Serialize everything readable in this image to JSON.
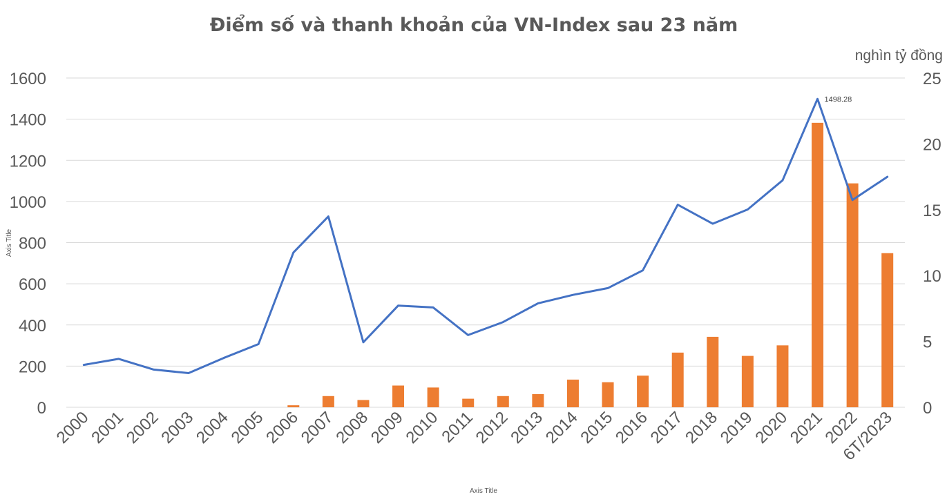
{
  "chart_data": {
    "type": "bar+line",
    "title": "Điểm số và thanh khoản của VN-Index sau 23 năm",
    "xlabel": "Axis Title",
    "ylabel": "Axis Title",
    "y2label": "nghìn tỷ đồng",
    "categories": [
      "2000",
      "2001",
      "2002",
      "2003",
      "2004",
      "2005",
      "2006",
      "2007",
      "2008",
      "2009",
      "2010",
      "2011",
      "2012",
      "2013",
      "2014",
      "2015",
      "2016",
      "2017",
      "2018",
      "2019",
      "2020",
      "2021",
      "2022",
      "6T/2023"
    ],
    "ylim": [
      0,
      1600
    ],
    "yticks": [
      "0",
      "200",
      "400",
      "600",
      "800",
      "1000",
      "1200",
      "1400",
      "1600"
    ],
    "y2lim": [
      0,
      25
    ],
    "y2ticks": [
      "0",
      "5",
      "10",
      "15",
      "20",
      "25"
    ],
    "grid": true,
    "series": [
      {
        "type": "bar",
        "axis": "right",
        "color": "#ed7d31",
        "values": [
          0,
          0,
          0,
          0,
          0,
          0,
          0.15,
          0.85,
          0.55,
          1.65,
          1.5,
          0.65,
          0.85,
          1.0,
          2.1,
          1.9,
          2.4,
          4.15,
          5.35,
          3.9,
          4.7,
          21.6,
          17.0,
          11.7
        ]
      },
      {
        "type": "line",
        "axis": "left",
        "color": "#4472c4",
        "values": [
          206,
          235,
          183,
          166,
          239,
          307,
          752,
          927,
          316,
          494,
          485,
          351,
          414,
          505,
          546,
          579,
          665,
          984,
          892,
          961,
          1103,
          1498.28,
          1007,
          1120
        ]
      }
    ],
    "annotations": [
      {
        "category": "2021",
        "text": "1498.28"
      }
    ]
  }
}
